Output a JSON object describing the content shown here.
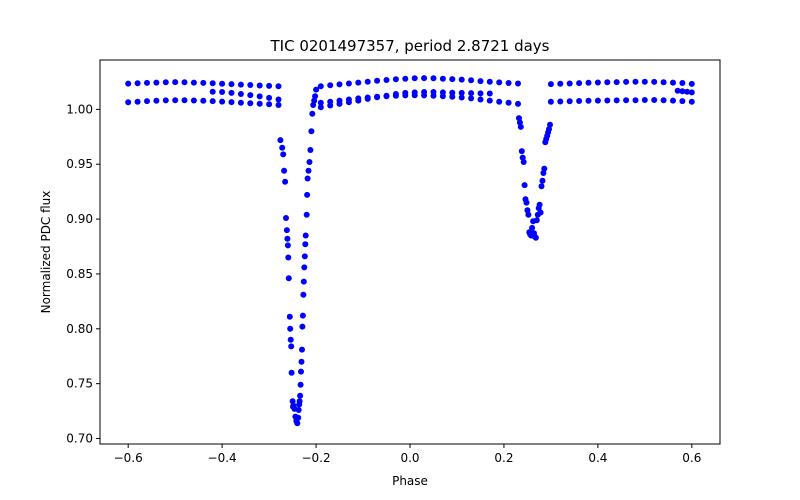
{
  "chart_data": {
    "type": "scatter",
    "title": "TIC 0201497357, period 2.8721 days",
    "xlabel": "Phase",
    "ylabel": "Normalized PDC flux",
    "xlim": [
      -0.66,
      0.66
    ],
    "ylim": [
      0.695,
      1.045
    ],
    "xticks": [
      -0.6,
      -0.4,
      -0.2,
      0.0,
      0.2,
      0.4,
      0.6
    ],
    "xtick_labels": [
      "−0.6",
      "−0.4",
      "−0.2",
      "0.0",
      "0.2",
      "0.4",
      "0.6"
    ],
    "yticks": [
      0.7,
      0.75,
      0.8,
      0.85,
      0.9,
      0.95,
      1.0
    ],
    "ytick_labels": [
      "0.70",
      "0.75",
      "0.80",
      "0.85",
      "0.90",
      "0.95",
      "1.00"
    ],
    "grid": false,
    "marker_color": "#0000ff",
    "series": [
      {
        "points": [
          [
            -0.6,
            1.0235
          ],
          [
            -0.58,
            1.0238
          ],
          [
            -0.56,
            1.0241
          ],
          [
            -0.54,
            1.0244
          ],
          [
            -0.52,
            1.0247
          ],
          [
            -0.5,
            1.0249
          ],
          [
            -0.48,
            1.0247
          ],
          [
            -0.46,
            1.0244
          ],
          [
            -0.44,
            1.0241
          ],
          [
            -0.42,
            1.0238
          ],
          [
            -0.4,
            1.0234
          ],
          [
            -0.38,
            1.023
          ],
          [
            -0.36,
            1.0226
          ],
          [
            -0.34,
            1.0222
          ],
          [
            -0.32,
            1.0218
          ],
          [
            -0.3,
            1.0214
          ],
          [
            -0.28,
            1.021
          ],
          [
            -0.6,
            1.0065
          ],
          [
            -0.58,
            1.007
          ],
          [
            -0.56,
            1.0075
          ],
          [
            -0.54,
            1.0079
          ],
          [
            -0.52,
            1.0082
          ],
          [
            -0.5,
            1.0084
          ],
          [
            -0.48,
            1.0083
          ],
          [
            -0.46,
            1.0081
          ],
          [
            -0.44,
            1.0078
          ],
          [
            -0.42,
            1.0075
          ],
          [
            -0.4,
            1.0071
          ],
          [
            -0.38,
            1.0066
          ],
          [
            -0.36,
            1.0061
          ],
          [
            -0.34,
            1.0056
          ],
          [
            -0.32,
            1.0051
          ],
          [
            -0.3,
            1.0046
          ],
          [
            -0.28,
            1.004
          ],
          [
            -0.42,
            1.016
          ],
          [
            -0.4,
            1.0158
          ],
          [
            -0.38,
            1.015
          ],
          [
            -0.36,
            1.014
          ],
          [
            -0.34,
            1.013
          ],
          [
            -0.32,
            1.0118
          ],
          [
            -0.3,
            1.0105
          ],
          [
            -0.28,
            1.009
          ],
          [
            -0.276,
            0.972
          ],
          [
            -0.272,
            0.965
          ],
          [
            -0.27,
            0.959
          ],
          [
            -0.268,
            0.944
          ],
          [
            -0.266,
            0.934
          ],
          [
            -0.264,
            0.901
          ],
          [
            -0.262,
            0.89
          ],
          [
            -0.261,
            0.882
          ],
          [
            -0.26,
            0.876
          ],
          [
            -0.259,
            0.865
          ],
          [
            -0.258,
            0.846
          ],
          [
            -0.256,
            0.811
          ],
          [
            -0.255,
            0.8
          ],
          [
            -0.254,
            0.79
          ],
          [
            -0.253,
            0.784
          ],
          [
            -0.252,
            0.76
          ],
          [
            -0.25,
            0.734
          ],
          [
            -0.249,
            0.729
          ],
          [
            -0.248,
            0.73
          ],
          [
            -0.246,
            0.727
          ],
          [
            -0.244,
            0.72
          ],
          [
            -0.242,
            0.716
          ],
          [
            -0.24,
            0.714
          ],
          [
            -0.238,
            0.719
          ],
          [
            -0.237,
            0.726
          ],
          [
            -0.236,
            0.731
          ],
          [
            -0.235,
            0.734
          ],
          [
            -0.234,
            0.739
          ],
          [
            -0.233,
            0.749
          ],
          [
            -0.232,
            0.761
          ],
          [
            -0.231,
            0.77
          ],
          [
            -0.23,
            0.781
          ],
          [
            -0.229,
            0.802
          ],
          [
            -0.228,
            0.812
          ],
          [
            -0.227,
            0.831
          ],
          [
            -0.226,
            0.843
          ],
          [
            -0.225,
            0.856
          ],
          [
            -0.224,
            0.866
          ],
          [
            -0.223,
            0.877
          ],
          [
            -0.222,
            0.885
          ],
          [
            -0.22,
            0.904
          ],
          [
            -0.219,
            0.922
          ],
          [
            -0.218,
            0.937
          ],
          [
            -0.216,
            0.944
          ],
          [
            -0.214,
            0.952
          ],
          [
            -0.212,
            0.963
          ],
          [
            -0.21,
            0.98
          ],
          [
            -0.208,
            0.996
          ],
          [
            -0.206,
            1.004
          ],
          [
            -0.204,
            1.008
          ],
          [
            -0.202,
            1.012
          ],
          [
            -0.2,
            1.018
          ],
          [
            -0.19,
            1.021
          ],
          [
            -0.17,
            1.022
          ],
          [
            -0.15,
            1.0228
          ],
          [
            -0.13,
            1.0236
          ],
          [
            -0.11,
            1.0244
          ],
          [
            -0.09,
            1.0252
          ],
          [
            -0.07,
            1.026
          ],
          [
            -0.05,
            1.0268
          ],
          [
            -0.03,
            1.0275
          ],
          [
            -0.01,
            1.028
          ],
          [
            0.01,
            1.0283
          ],
          [
            0.03,
            1.0285
          ],
          [
            0.05,
            1.0283
          ],
          [
            0.07,
            1.028
          ],
          [
            0.09,
            1.0276
          ],
          [
            0.11,
            1.0271
          ],
          [
            0.13,
            1.0265
          ],
          [
            0.15,
            1.0258
          ],
          [
            0.17,
            1.0252
          ],
          [
            0.19,
            1.0246
          ],
          [
            0.21,
            1.024
          ],
          [
            0.23,
            1.0236
          ],
          [
            -0.19,
            1.006
          ],
          [
            -0.17,
            1.007
          ],
          [
            -0.15,
            1.008
          ],
          [
            -0.13,
            1.009
          ],
          [
            -0.11,
            1.01
          ],
          [
            -0.09,
            1.0108
          ],
          [
            -0.07,
            1.0115
          ],
          [
            -0.05,
            1.012
          ],
          [
            -0.03,
            1.0124
          ],
          [
            -0.01,
            1.0127
          ],
          [
            0.01,
            1.0128
          ],
          [
            0.03,
            1.0127
          ],
          [
            0.05,
            1.0124
          ],
          [
            0.07,
            1.012
          ],
          [
            0.09,
            1.0115
          ],
          [
            0.11,
            1.0108
          ],
          [
            0.13,
            1.01
          ],
          [
            0.15,
            1.009
          ],
          [
            0.17,
            1.008
          ],
          [
            0.19,
            1.007
          ],
          [
            0.21,
            1.006
          ],
          [
            0.23,
            1.005
          ],
          [
            -0.19,
            1.002
          ],
          [
            -0.17,
            1.0035
          ],
          [
            -0.15,
            1.005
          ],
          [
            -0.13,
            1.0065
          ],
          [
            -0.11,
            1.008
          ],
          [
            -0.09,
            1.0095
          ],
          [
            -0.07,
            1.011
          ],
          [
            -0.05,
            1.0125
          ],
          [
            -0.03,
            1.014
          ],
          [
            -0.01,
            1.015
          ],
          [
            0.01,
            1.0155
          ],
          [
            0.03,
            1.0158
          ],
          [
            0.05,
            1.0158
          ],
          [
            0.07,
            1.0155
          ],
          [
            0.09,
            1.0152
          ],
          [
            0.11,
            1.015
          ],
          [
            0.13,
            1.0148
          ],
          [
            0.15,
            1.0146
          ],
          [
            0.17,
            1.0145
          ],
          [
            0.232,
            0.992
          ],
          [
            0.234,
            0.988
          ],
          [
            0.236,
            0.984
          ],
          [
            0.238,
            0.962
          ],
          [
            0.24,
            0.956
          ],
          [
            0.242,
            0.952
          ],
          [
            0.244,
            0.931
          ],
          [
            0.246,
            0.918
          ],
          [
            0.248,
            0.915
          ],
          [
            0.25,
            0.908
          ],
          [
            0.252,
            0.904
          ],
          [
            0.254,
            0.888
          ],
          [
            0.256,
            0.886
          ],
          [
            0.258,
            0.885
          ],
          [
            0.26,
            0.892
          ],
          [
            0.262,
            0.898
          ],
          [
            0.264,
            0.887
          ],
          [
            0.266,
            0.884
          ],
          [
            0.268,
            0.883
          ],
          [
            0.27,
            0.899
          ],
          [
            0.272,
            0.904
          ],
          [
            0.274,
            0.91
          ],
          [
            0.276,
            0.913
          ],
          [
            0.278,
            0.906
          ],
          [
            0.28,
            0.93
          ],
          [
            0.282,
            0.935
          ],
          [
            0.284,
            0.942
          ],
          [
            0.286,
            0.946
          ],
          [
            0.288,
            0.97
          ],
          [
            0.29,
            0.973
          ],
          [
            0.292,
            0.976
          ],
          [
            0.294,
            0.979
          ],
          [
            0.296,
            0.982
          ],
          [
            0.298,
            0.986
          ],
          [
            0.3,
            1.007
          ],
          [
            0.32,
            1.0072
          ],
          [
            0.34,
            1.0074
          ],
          [
            0.36,
            1.0076
          ],
          [
            0.38,
            1.0078
          ],
          [
            0.4,
            1.008
          ],
          [
            0.42,
            1.0081
          ],
          [
            0.44,
            1.0082
          ],
          [
            0.46,
            1.0083
          ],
          [
            0.48,
            1.0084
          ],
          [
            0.5,
            1.0085
          ],
          [
            0.52,
            1.0085
          ],
          [
            0.54,
            1.0084
          ],
          [
            0.56,
            1.008
          ],
          [
            0.58,
            1.0075
          ],
          [
            0.6,
            1.007
          ],
          [
            0.3,
            1.023
          ],
          [
            0.32,
            1.0233
          ],
          [
            0.34,
            1.0236
          ],
          [
            0.36,
            1.0239
          ],
          [
            0.38,
            1.0242
          ],
          [
            0.4,
            1.0245
          ],
          [
            0.42,
            1.0247
          ],
          [
            0.44,
            1.0249
          ],
          [
            0.46,
            1.025
          ],
          [
            0.48,
            1.0251
          ],
          [
            0.5,
            1.0252
          ],
          [
            0.52,
            1.025
          ],
          [
            0.54,
            1.0248
          ],
          [
            0.56,
            1.0244
          ],
          [
            0.58,
            1.024
          ],
          [
            0.6,
            1.0232
          ],
          [
            0.57,
            1.017
          ],
          [
            0.58,
            1.0165
          ],
          [
            0.59,
            1.016
          ],
          [
            0.6,
            1.0155
          ]
        ]
      }
    ]
  }
}
